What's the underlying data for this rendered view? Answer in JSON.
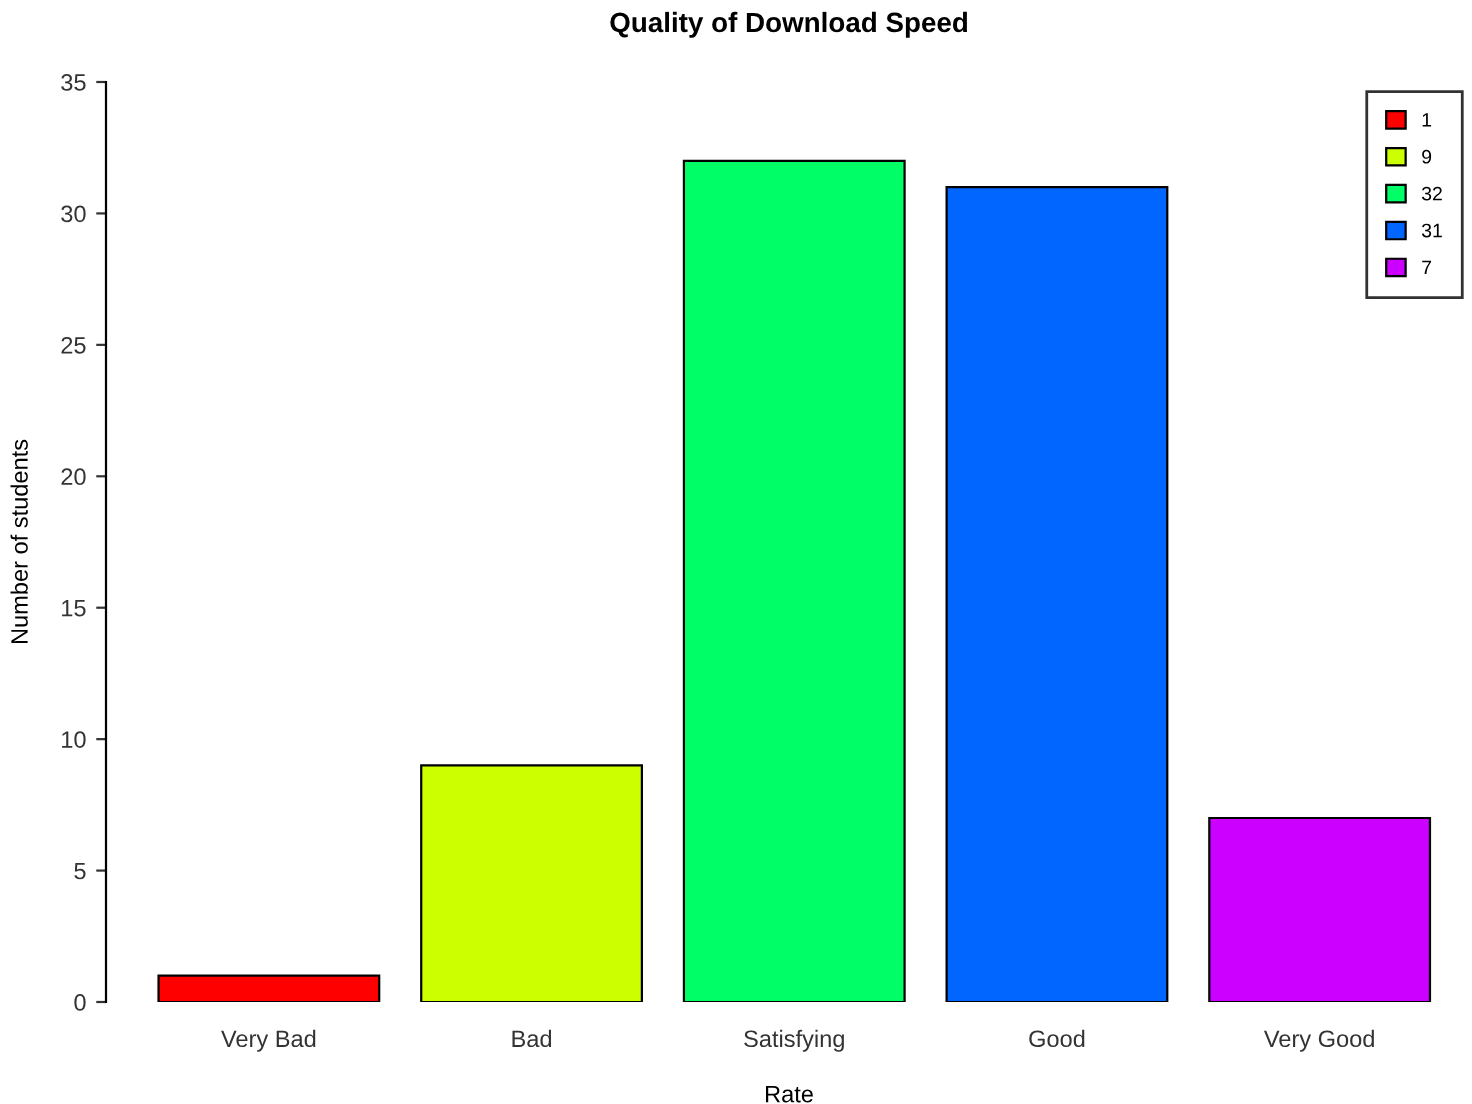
{
  "chart_data": {
    "type": "bar",
    "title": "Quality of Download Speed",
    "xlabel": "Rate",
    "ylabel": "Number of students",
    "categories": [
      "Very Bad",
      "Bad",
      "Satisfying",
      "Good",
      "Very Good"
    ],
    "stacked": true,
    "series": [
      {
        "name": "1",
        "color": "#ff0000",
        "values": [
          1,
          null,
          null,
          null,
          null
        ]
      },
      {
        "name": "9",
        "color": "#ccff00",
        "values": [
          null,
          9,
          null,
          null,
          null
        ]
      },
      {
        "name": "32",
        "color": "#00ff66",
        "values": [
          null,
          null,
          32,
          null,
          null
        ]
      },
      {
        "name": "31",
        "color": "#0066ff",
        "values": [
          null,
          null,
          null,
          31,
          null
        ]
      },
      {
        "name": "7",
        "color": "#cc00ff",
        "values": [
          null,
          null,
          null,
          null,
          7
        ]
      }
    ],
    "ylim": [
      0,
      35
    ],
    "yticks": [
      0,
      5,
      10,
      15,
      20,
      25,
      30,
      35
    ],
    "grid": false,
    "legend": "top right"
  }
}
